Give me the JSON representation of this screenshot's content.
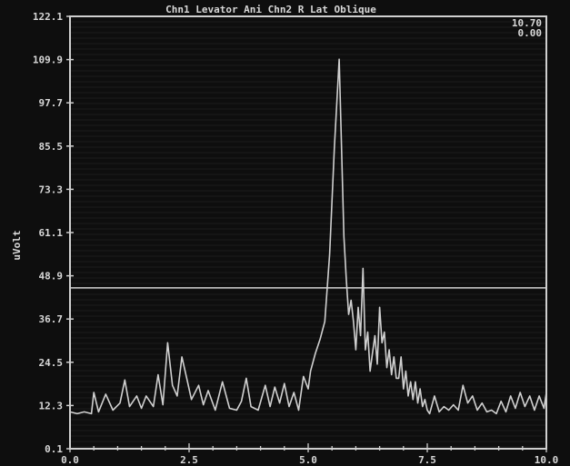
{
  "chart_data": {
    "type": "line",
    "title": "Chn1 Levator Ani  Chn2 R Lat Oblique",
    "ylabel": "uVolt",
    "xlabel": "",
    "corner_readout": [
      "10.70",
      "0.00"
    ],
    "xlim": [
      0.0,
      10.0
    ],
    "ylim": [
      0.1,
      122.1
    ],
    "x_ticks": [
      "0.0",
      "2.5",
      "5.0",
      "7.5",
      "10.0"
    ],
    "x_tick_values": [
      0.0,
      2.5,
      5.0,
      7.5,
      10.0
    ],
    "y_ticks": [
      "122.1",
      "109.9",
      "97.7",
      "85.5",
      "73.3",
      "61.1",
      "48.9",
      "36.7",
      "24.5",
      "12.3",
      "0.1"
    ],
    "y_tick_values": [
      122.1,
      109.9,
      97.7,
      85.5,
      73.3,
      61.1,
      48.9,
      36.7,
      24.5,
      12.3,
      0.1
    ],
    "threshold": 45.5,
    "grid": true,
    "colors": {
      "trace": "#d0d0d0",
      "background": "#0e0e0e",
      "grid": "#2a2a2a",
      "frame": "#cfcfcf"
    },
    "series": [
      {
        "x": [
          0.0,
          0.15,
          0.3,
          0.45,
          0.5,
          0.6,
          0.75,
          0.9,
          1.05,
          1.15,
          1.25,
          1.4,
          1.5,
          1.6,
          1.75,
          1.85,
          1.95,
          2.05,
          2.15,
          2.25,
          2.35,
          2.45,
          2.55,
          2.7,
          2.8,
          2.9,
          3.05,
          3.2,
          3.35,
          3.5,
          3.6,
          3.7,
          3.8,
          3.95,
          4.1,
          4.2,
          4.3,
          4.4,
          4.5,
          4.6,
          4.7,
          4.8,
          4.9,
          5.0,
          5.05,
          5.15,
          5.25,
          5.35,
          5.45,
          5.55,
          5.65,
          5.75,
          5.8,
          5.85,
          5.9,
          5.95,
          6.0,
          6.05,
          6.1,
          6.15,
          6.2,
          6.25,
          6.3,
          6.35,
          6.4,
          6.45,
          6.5,
          6.55,
          6.6,
          6.65,
          6.7,
          6.75,
          6.8,
          6.85,
          6.9,
          6.95,
          7.0,
          7.05,
          7.1,
          7.15,
          7.2,
          7.25,
          7.3,
          7.35,
          7.4,
          7.45,
          7.5,
          7.55,
          7.65,
          7.75,
          7.85,
          7.95,
          8.05,
          8.15,
          8.25,
          8.35,
          8.45,
          8.55,
          8.65,
          8.75,
          8.85,
          8.95,
          9.05,
          9.15,
          9.25,
          9.35,
          9.45,
          9.55,
          9.65,
          9.75,
          9.85,
          9.95,
          10.0
        ],
        "y": [
          10.5,
          10.0,
          10.5,
          10.0,
          16.0,
          10.5,
          15.5,
          11.0,
          13.0,
          19.5,
          12.0,
          15.0,
          11.5,
          15.0,
          12.0,
          21.0,
          12.5,
          30.0,
          18.0,
          15.0,
          26.0,
          20.0,
          14.0,
          18.0,
          12.5,
          16.5,
          11.0,
          19.0,
          11.5,
          11.0,
          13.5,
          20.0,
          12.0,
          11.0,
          18.0,
          12.0,
          17.5,
          13.0,
          18.5,
          12.0,
          16.0,
          11.0,
          20.5,
          17.0,
          22.0,
          27.0,
          31.0,
          36.0,
          55.0,
          85.0,
          110.0,
          60.0,
          48.0,
          38.0,
          42.0,
          36.0,
          28.0,
          40.0,
          32.0,
          51.0,
          28.0,
          33.0,
          22.0,
          27.0,
          32.0,
          24.0,
          40.0,
          30.0,
          33.0,
          23.0,
          28.0,
          21.0,
          26.0,
          20.0,
          20.0,
          26.0,
          17.0,
          22.0,
          15.0,
          19.0,
          14.0,
          19.0,
          13.0,
          17.0,
          12.0,
          14.0,
          11.0,
          10.0,
          15.0,
          10.5,
          12.0,
          11.0,
          12.5,
          11.0,
          18.0,
          13.0,
          15.0,
          11.0,
          13.0,
          10.5,
          11.0,
          10.0,
          13.5,
          10.5,
          15.0,
          11.5,
          16.0,
          12.0,
          15.0,
          11.0,
          15.0,
          11.5,
          16.0
        ]
      }
    ]
  }
}
